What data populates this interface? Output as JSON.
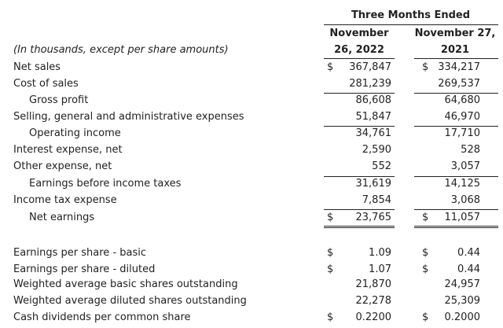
{
  "header": {
    "period": "Three Months Ended",
    "col1_line1": "November",
    "col1_line2": "26, 2022",
    "col2_line1": "November 27,",
    "col2_line2": "2021",
    "units_note": "(In thousands, except per share amounts)"
  },
  "rows": [
    {
      "label": "Net sales",
      "c1_cur": "$",
      "c1": "367,847",
      "c2_cur": "$",
      "c2": "334,217"
    },
    {
      "label": "Cost of sales",
      "c1_cur": "",
      "c1": "281,239",
      "c2_cur": "",
      "c2": "269,537"
    },
    {
      "label": "Gross profit",
      "c1_cur": "",
      "c1": "86,608",
      "c2_cur": "",
      "c2": "64,680"
    },
    {
      "label": "Selling, general and administrative expenses",
      "c1_cur": "",
      "c1": "51,847",
      "c2_cur": "",
      "c2": "46,970"
    },
    {
      "label": "Operating income",
      "c1_cur": "",
      "c1": "34,761",
      "c2_cur": "",
      "c2": "17,710"
    },
    {
      "label": "Interest expense, net",
      "c1_cur": "",
      "c1": "2,590",
      "c2_cur": "",
      "c2": "528"
    },
    {
      "label": "Other expense, net",
      "c1_cur": "",
      "c1": "552",
      "c2_cur": "",
      "c2": "3,057"
    },
    {
      "label": "Earnings before income taxes",
      "c1_cur": "",
      "c1": "31,619",
      "c2_cur": "",
      "c2": "14,125"
    },
    {
      "label": "Income tax expense",
      "c1_cur": "",
      "c1": "7,854",
      "c2_cur": "",
      "c2": "3,068"
    },
    {
      "label": "Net earnings",
      "c1_cur": "$",
      "c1": "23,765",
      "c2_cur": "$",
      "c2": "11,057"
    },
    {
      "label": "Earnings per share - basic",
      "c1_cur": "$",
      "c1": "1.09",
      "c2_cur": "$",
      "c2": "0.44"
    },
    {
      "label": "Earnings per share - diluted",
      "c1_cur": "$",
      "c1": "1.07",
      "c2_cur": "$",
      "c2": "0.44"
    },
    {
      "label": "Weighted average basic shares outstanding",
      "c1_cur": "",
      "c1": "21,870",
      "c2_cur": "",
      "c2": "24,957"
    },
    {
      "label": "Weighted average diluted shares outstanding",
      "c1_cur": "",
      "c1": "22,278",
      "c2_cur": "",
      "c2": "25,309"
    },
    {
      "label": "Cash dividends per common share",
      "c1_cur": "$",
      "c1": "0.2200",
      "c2_cur": "$",
      "c2": "0.2000"
    }
  ]
}
